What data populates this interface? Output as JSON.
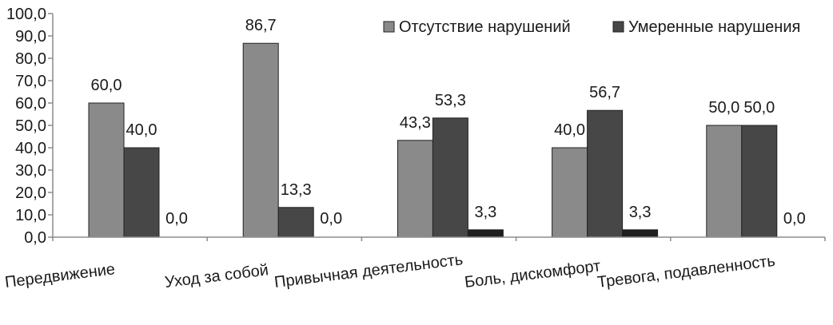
{
  "chart_data": {
    "type": "bar",
    "categories": [
      "Передвижение",
      "Уход за собой",
      "Привычная деятельность",
      "Боль, дискомфорт",
      "Тревога, подавленность"
    ],
    "series": [
      {
        "name": "Отсутствие нарушений",
        "values": [
          60.0,
          86.7,
          43.3,
          40.0,
          50.0
        ],
        "labels": [
          "60,0",
          "86,7",
          "43,3",
          "40,0",
          "50,0"
        ],
        "color": "#8a8a8a"
      },
      {
        "name": "Умеренные нарушения",
        "values": [
          40.0,
          13.3,
          53.3,
          56.7,
          50.0
        ],
        "labels": [
          "40,0",
          "13,3",
          "53,3",
          "56,7",
          "50,0"
        ],
        "color": "#474747"
      },
      {
        "name": "",
        "values": [
          0.0,
          0.0,
          3.3,
          3.3,
          0.0
        ],
        "labels": [
          "0,0",
          "0,0",
          "3,3",
          "3,3",
          "0,0"
        ],
        "color": "#1f1f1f"
      }
    ],
    "ylim": [
      0,
      100
    ],
    "yticks": [
      "0,0",
      "10,0",
      "20,0",
      "30,0",
      "40,0",
      "50,0",
      "60,0",
      "70,0",
      "80,0",
      "90,0",
      "100,0"
    ],
    "grid": false,
    "legend": "top-right",
    "title": "",
    "xlabel": "",
    "ylabel": ""
  }
}
